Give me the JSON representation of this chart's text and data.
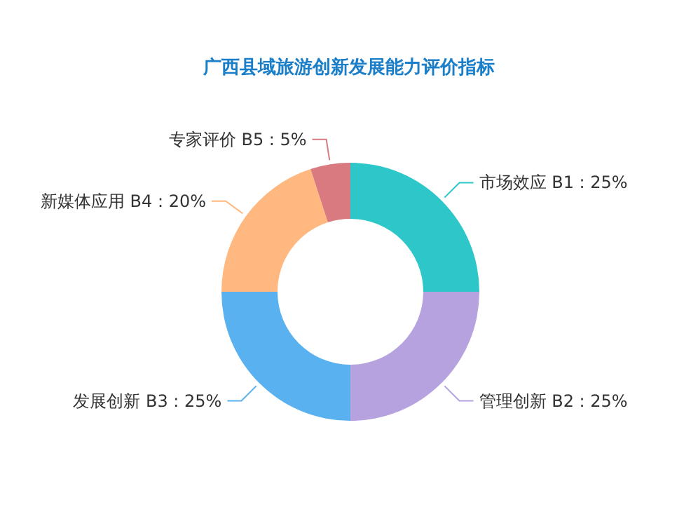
{
  "chart_data": {
    "type": "donut",
    "title": "广西县域旅游创新发展能力评价指标",
    "categories": [
      "市场效应 B1",
      "管理创新 B2",
      "发展创新 B3",
      "新媒体应用 B4",
      "专家评价 B5"
    ],
    "values": [
      25,
      25,
      25,
      20,
      5
    ],
    "value_labels": [
      "25%",
      "25%",
      "25%",
      "20%",
      "5%"
    ],
    "colors": [
      "#2ec7c9",
      "#b6a2de",
      "#5ab1ef",
      "#ffb980",
      "#d87a80"
    ]
  }
}
